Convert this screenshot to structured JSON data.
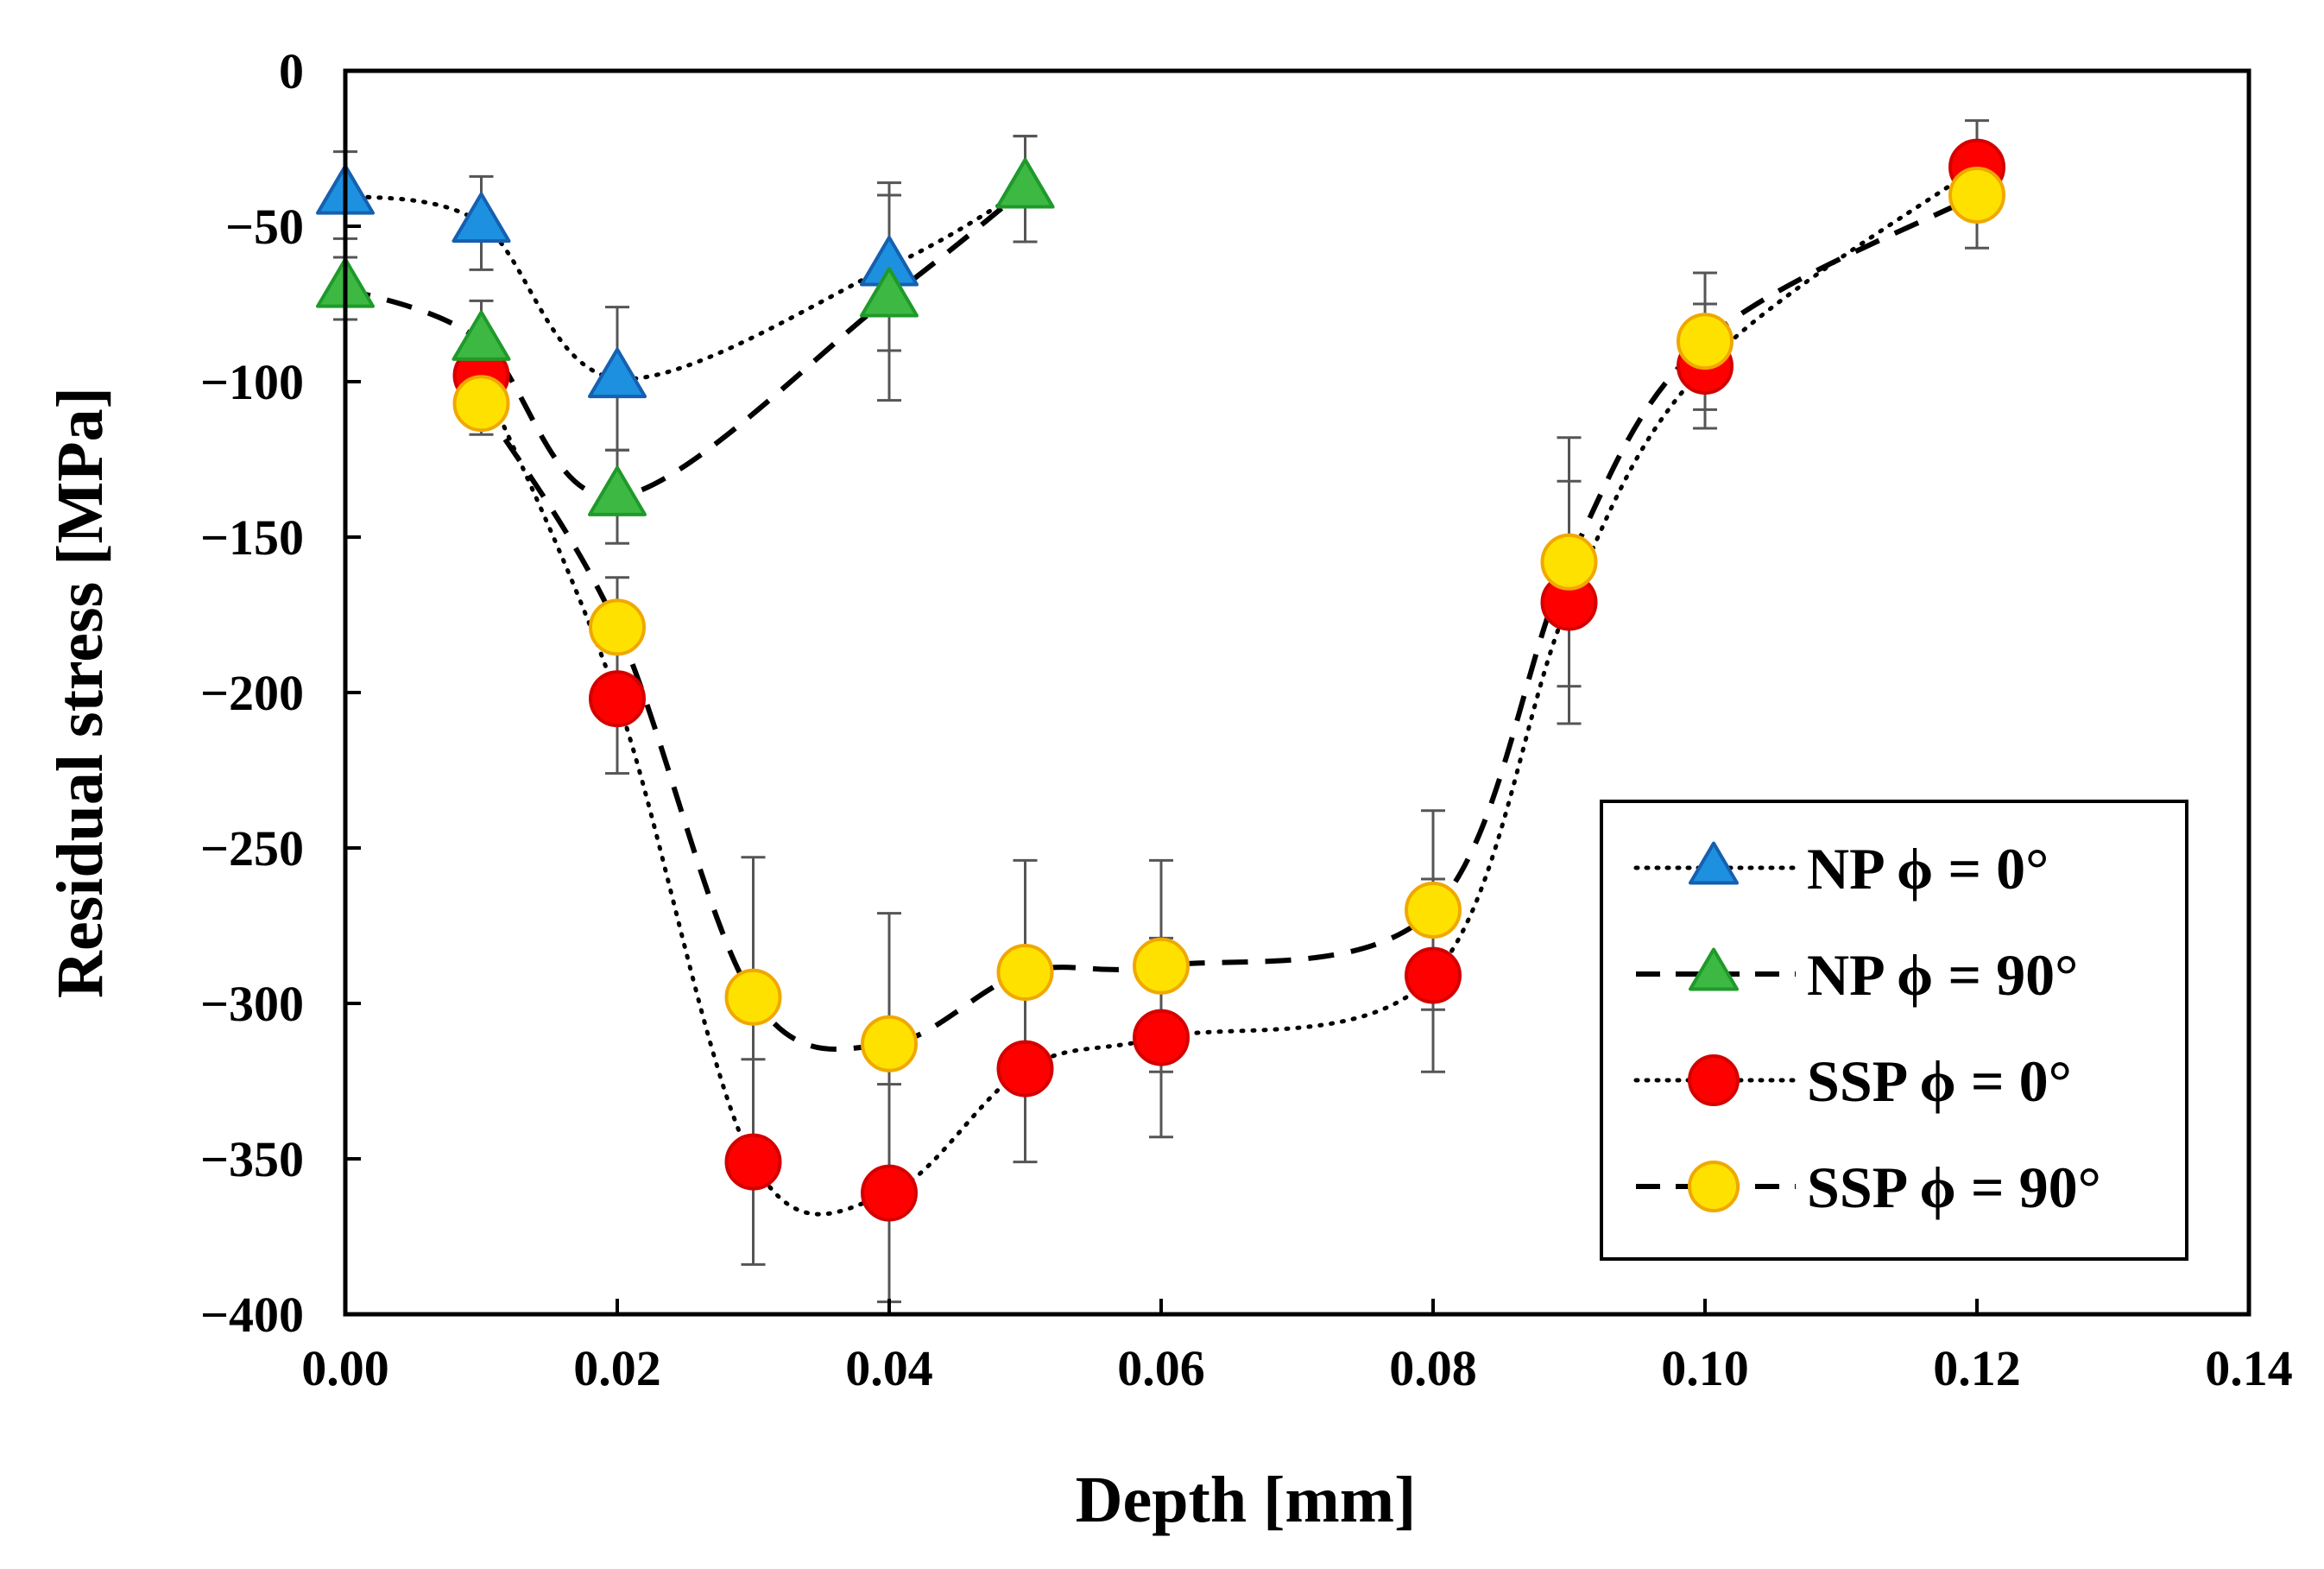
{
  "chart_data": {
    "type": "scatter",
    "xlabel": "Depth [mm]",
    "ylabel": "Residual stress [MPa]",
    "xlim": [
      0,
      0.14
    ],
    "ylim": [
      -400,
      0
    ],
    "xticks": [
      "0.00",
      "0.02",
      "0.04",
      "0.06",
      "0.08",
      "0.10",
      "0.12",
      "0.14"
    ],
    "yticks": [
      "0",
      "-50",
      "-100",
      "-150",
      "-200",
      "-250",
      "-300",
      "-350",
      "-400"
    ],
    "legend_position": "bottom-right",
    "grid": false,
    "series": [
      {
        "name": "NP ϕ = 0°",
        "marker": "triangle",
        "line": "dotted",
        "color": "#1e90e0",
        "x": [
          0.0,
          0.01,
          0.02,
          0.04,
          0.05
        ],
        "y": [
          -40,
          -49,
          -99,
          -63,
          -38
        ],
        "err": [
          14,
          15,
          23,
          27,
          17
        ]
      },
      {
        "name": "NP ϕ = 90°",
        "marker": "triangle",
        "line": "dashed",
        "color": "#3cb843",
        "x": [
          0.0,
          0.01,
          0.02,
          0.04,
          0.05
        ],
        "y": [
          -70,
          -87,
          -137,
          -73,
          -38
        ],
        "err": [
          10,
          13,
          15,
          33,
          17
        ]
      },
      {
        "name": "SSP ϕ = 0°",
        "marker": "circle",
        "line": "dotted",
        "color": "#ff0000",
        "x": [
          0.01,
          0.02,
          0.03,
          0.04,
          0.05,
          0.06,
          0.08,
          0.09,
          0.1,
          0.12
        ],
        "y": [
          -98,
          -202,
          -351,
          -361,
          -321,
          -311,
          -291,
          -171,
          -95,
          -31
        ],
        "err": [
          10,
          24,
          33,
          35,
          30,
          32,
          31,
          39,
          20,
          15
        ]
      },
      {
        "name": "SSP ϕ = 90°",
        "marker": "circle",
        "line": "dashed",
        "color": "#ffe100",
        "x": [
          0.01,
          0.02,
          0.03,
          0.04,
          0.05,
          0.06,
          0.08,
          0.09,
          0.1,
          0.12
        ],
        "y": [
          -107,
          -179,
          -298,
          -313,
          -290,
          -288,
          -270,
          -158,
          -87,
          -40
        ],
        "err": [
          10,
          16,
          45,
          42,
          36,
          34,
          32,
          40,
          22,
          17
        ]
      }
    ]
  }
}
